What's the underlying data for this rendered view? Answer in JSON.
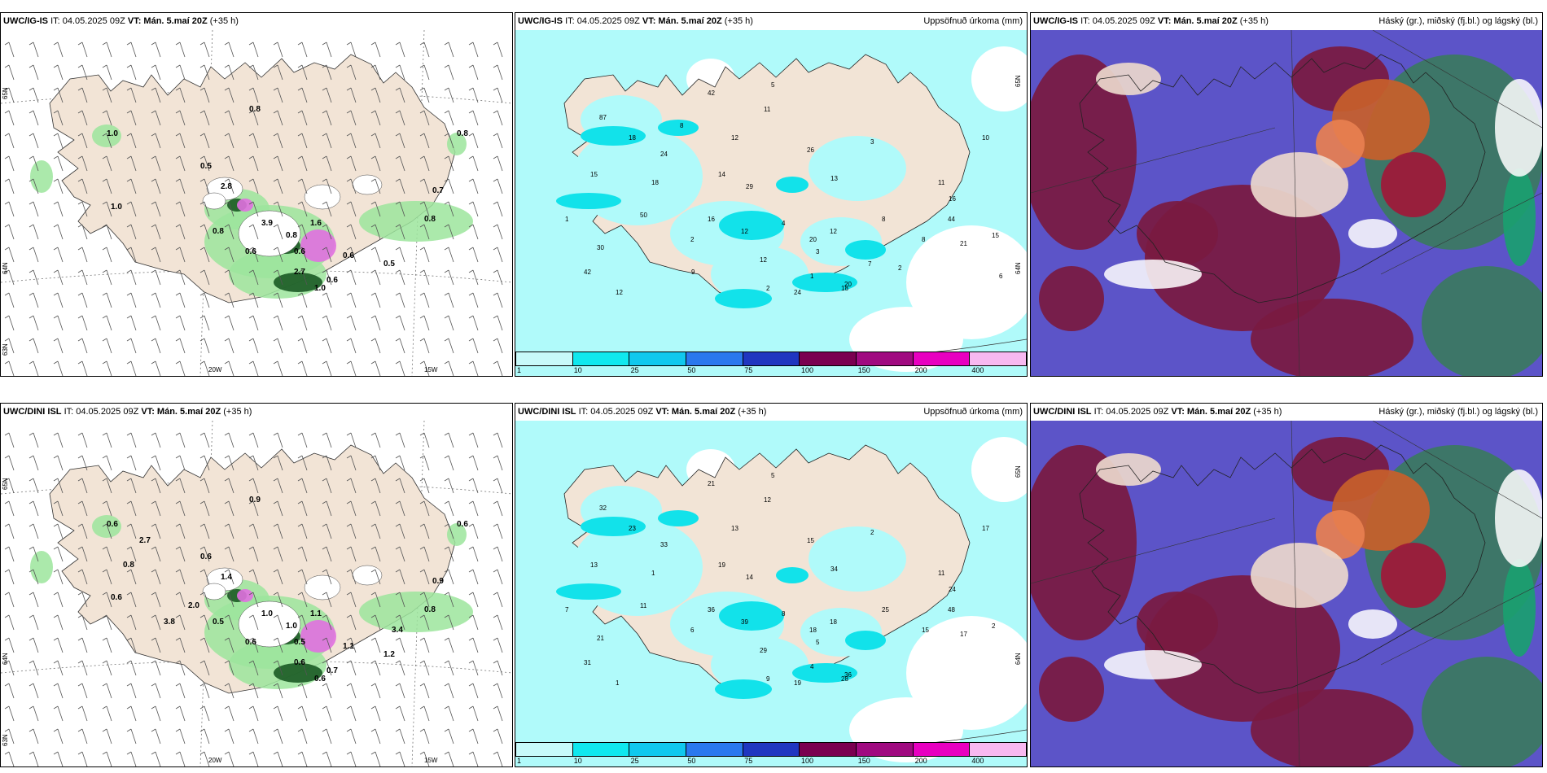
{
  "panels": [
    {
      "id": "p1",
      "type": "wind",
      "title_bold": "UWC/IG-IS",
      "run": "IT: 04.05.2025 09Z",
      "vt_label": "VT: Mán. 5.maí 20Z",
      "lead": "(+35 h)",
      "right": "",
      "labels": [
        "0.8",
        "1.0",
        "1.0",
        "3.9",
        "0.8",
        "0.6",
        "0.6",
        "0.8",
        "0.7",
        "0.8",
        "0.5",
        "0.5",
        "2.8",
        "2.7",
        "1.6",
        "1.0",
        "0.6",
        "0.6",
        "0.8"
      ],
      "lat_labels": [
        "65N",
        "64N",
        "63N"
      ],
      "lon_labels": [
        "20W",
        "15W"
      ]
    },
    {
      "id": "p2",
      "type": "precip",
      "title_bold": "UWC/IG-IS",
      "run": "IT: 04.05.2025 09Z",
      "vt_label": "VT: Mán. 5.maí 20Z",
      "lead": "(+35 h)",
      "right": "Uppsöfnuð úrkoma (mm)",
      "labels": [
        "11",
        "10",
        "12",
        "8",
        "24",
        "30",
        "26",
        "20",
        "14",
        "12",
        "8",
        "87",
        "42",
        "18",
        "16",
        "18",
        "24",
        "21",
        "42",
        "13",
        "12",
        "29",
        "16",
        "11",
        "15",
        "12",
        "50",
        "44",
        "20",
        "18",
        "15",
        "12",
        "3",
        "3",
        "1",
        "2",
        "2",
        "1",
        "5",
        "4",
        "2",
        "7",
        "9",
        "6",
        "8"
      ],
      "lat_labels": [
        "65N",
        "64N"
      ],
      "lon_labels": []
    },
    {
      "id": "p3",
      "type": "cloud",
      "title_bold": "UWC/IG-IS",
      "run": "IT: 04.05.2025 09Z",
      "vt_label": "VT: Mán. 5.maí 20Z",
      "lead": "(+35 h)",
      "right": "Háský (gr.), miðský (fj.bl.) og lágský (bl.)"
    },
    {
      "id": "p4",
      "type": "wind",
      "title_bold": "UWC/DINI ISL",
      "run": "IT: 04.05.2025 09Z",
      "vt_label": "VT: Mán. 5.maí 20Z",
      "lead": "(+35 h)",
      "right": "",
      "labels": [
        "0.9",
        "0.6",
        "0.6",
        "1.0",
        "1.0",
        "0.6",
        "0.5",
        "0.6",
        "0.9",
        "0.8",
        "1.2",
        "0.6",
        "1.4",
        "0.6",
        "1.1",
        "0.6",
        "0.7",
        "1.1",
        "0.5",
        "2.0",
        "3.8",
        "3.4",
        "2.7",
        "0.8"
      ],
      "lat_labels": [
        "65N",
        "64N",
        "63N"
      ],
      "lon_labels": [
        "20W",
        "15W"
      ]
    },
    {
      "id": "p5",
      "type": "precip",
      "title_bold": "UWC/DINI ISL",
      "run": "IT: 04.05.2025 09Z",
      "vt_label": "VT: Mán. 5.maí 20Z",
      "lead": "(+35 h)",
      "right": "Uppsöfnuð úrkoma (mm)",
      "labels": [
        "12",
        "17",
        "18",
        "15",
        "19",
        "21",
        "15",
        "18",
        "19",
        "39",
        "25",
        "32",
        "21",
        "23",
        "24",
        "28",
        "33",
        "17",
        "31",
        "34",
        "29",
        "14",
        "36",
        "11",
        "13",
        "13",
        "11",
        "48",
        "36",
        "1",
        "2",
        "1",
        "2",
        "5",
        "4",
        "6",
        "9",
        "7",
        "5",
        "8"
      ],
      "lat_labels": [
        "65N",
        "64N"
      ],
      "lon_labels": []
    },
    {
      "id": "p6",
      "type": "cloud",
      "title_bold": "UWC/DINI ISL",
      "run": "IT: 04.05.2025 09Z",
      "vt_label": "VT: Mán. 5.maí 20Z",
      "lead": "(+35 h)",
      "right": "Háský (gr.), miðský (fj.bl.) og lágský (bl.)"
    }
  ],
  "precip_legend": {
    "labels": [
      "1",
      "10",
      "25",
      "50",
      "75",
      "100",
      "150",
      "200",
      "400"
    ],
    "colors": [
      "#c8fafa",
      "#10e8ee",
      "#10c8ee",
      "#2a78ee",
      "#2036c0",
      "#7a0050",
      "#a00a80",
      "#e800c0",
      "#f8b8f0"
    ]
  },
  "colors": {
    "land": "#f2e4d6",
    "sea": "#ffffff",
    "precip_base": "#b0fafa",
    "cloud_high": "#3b7a60",
    "cloud_mid": "#7a1a40",
    "cloud_low": "#5c54c8",
    "wind_green": "#9ce59c",
    "wind_dark": "#1a5a24",
    "snow": "#e070e0"
  }
}
